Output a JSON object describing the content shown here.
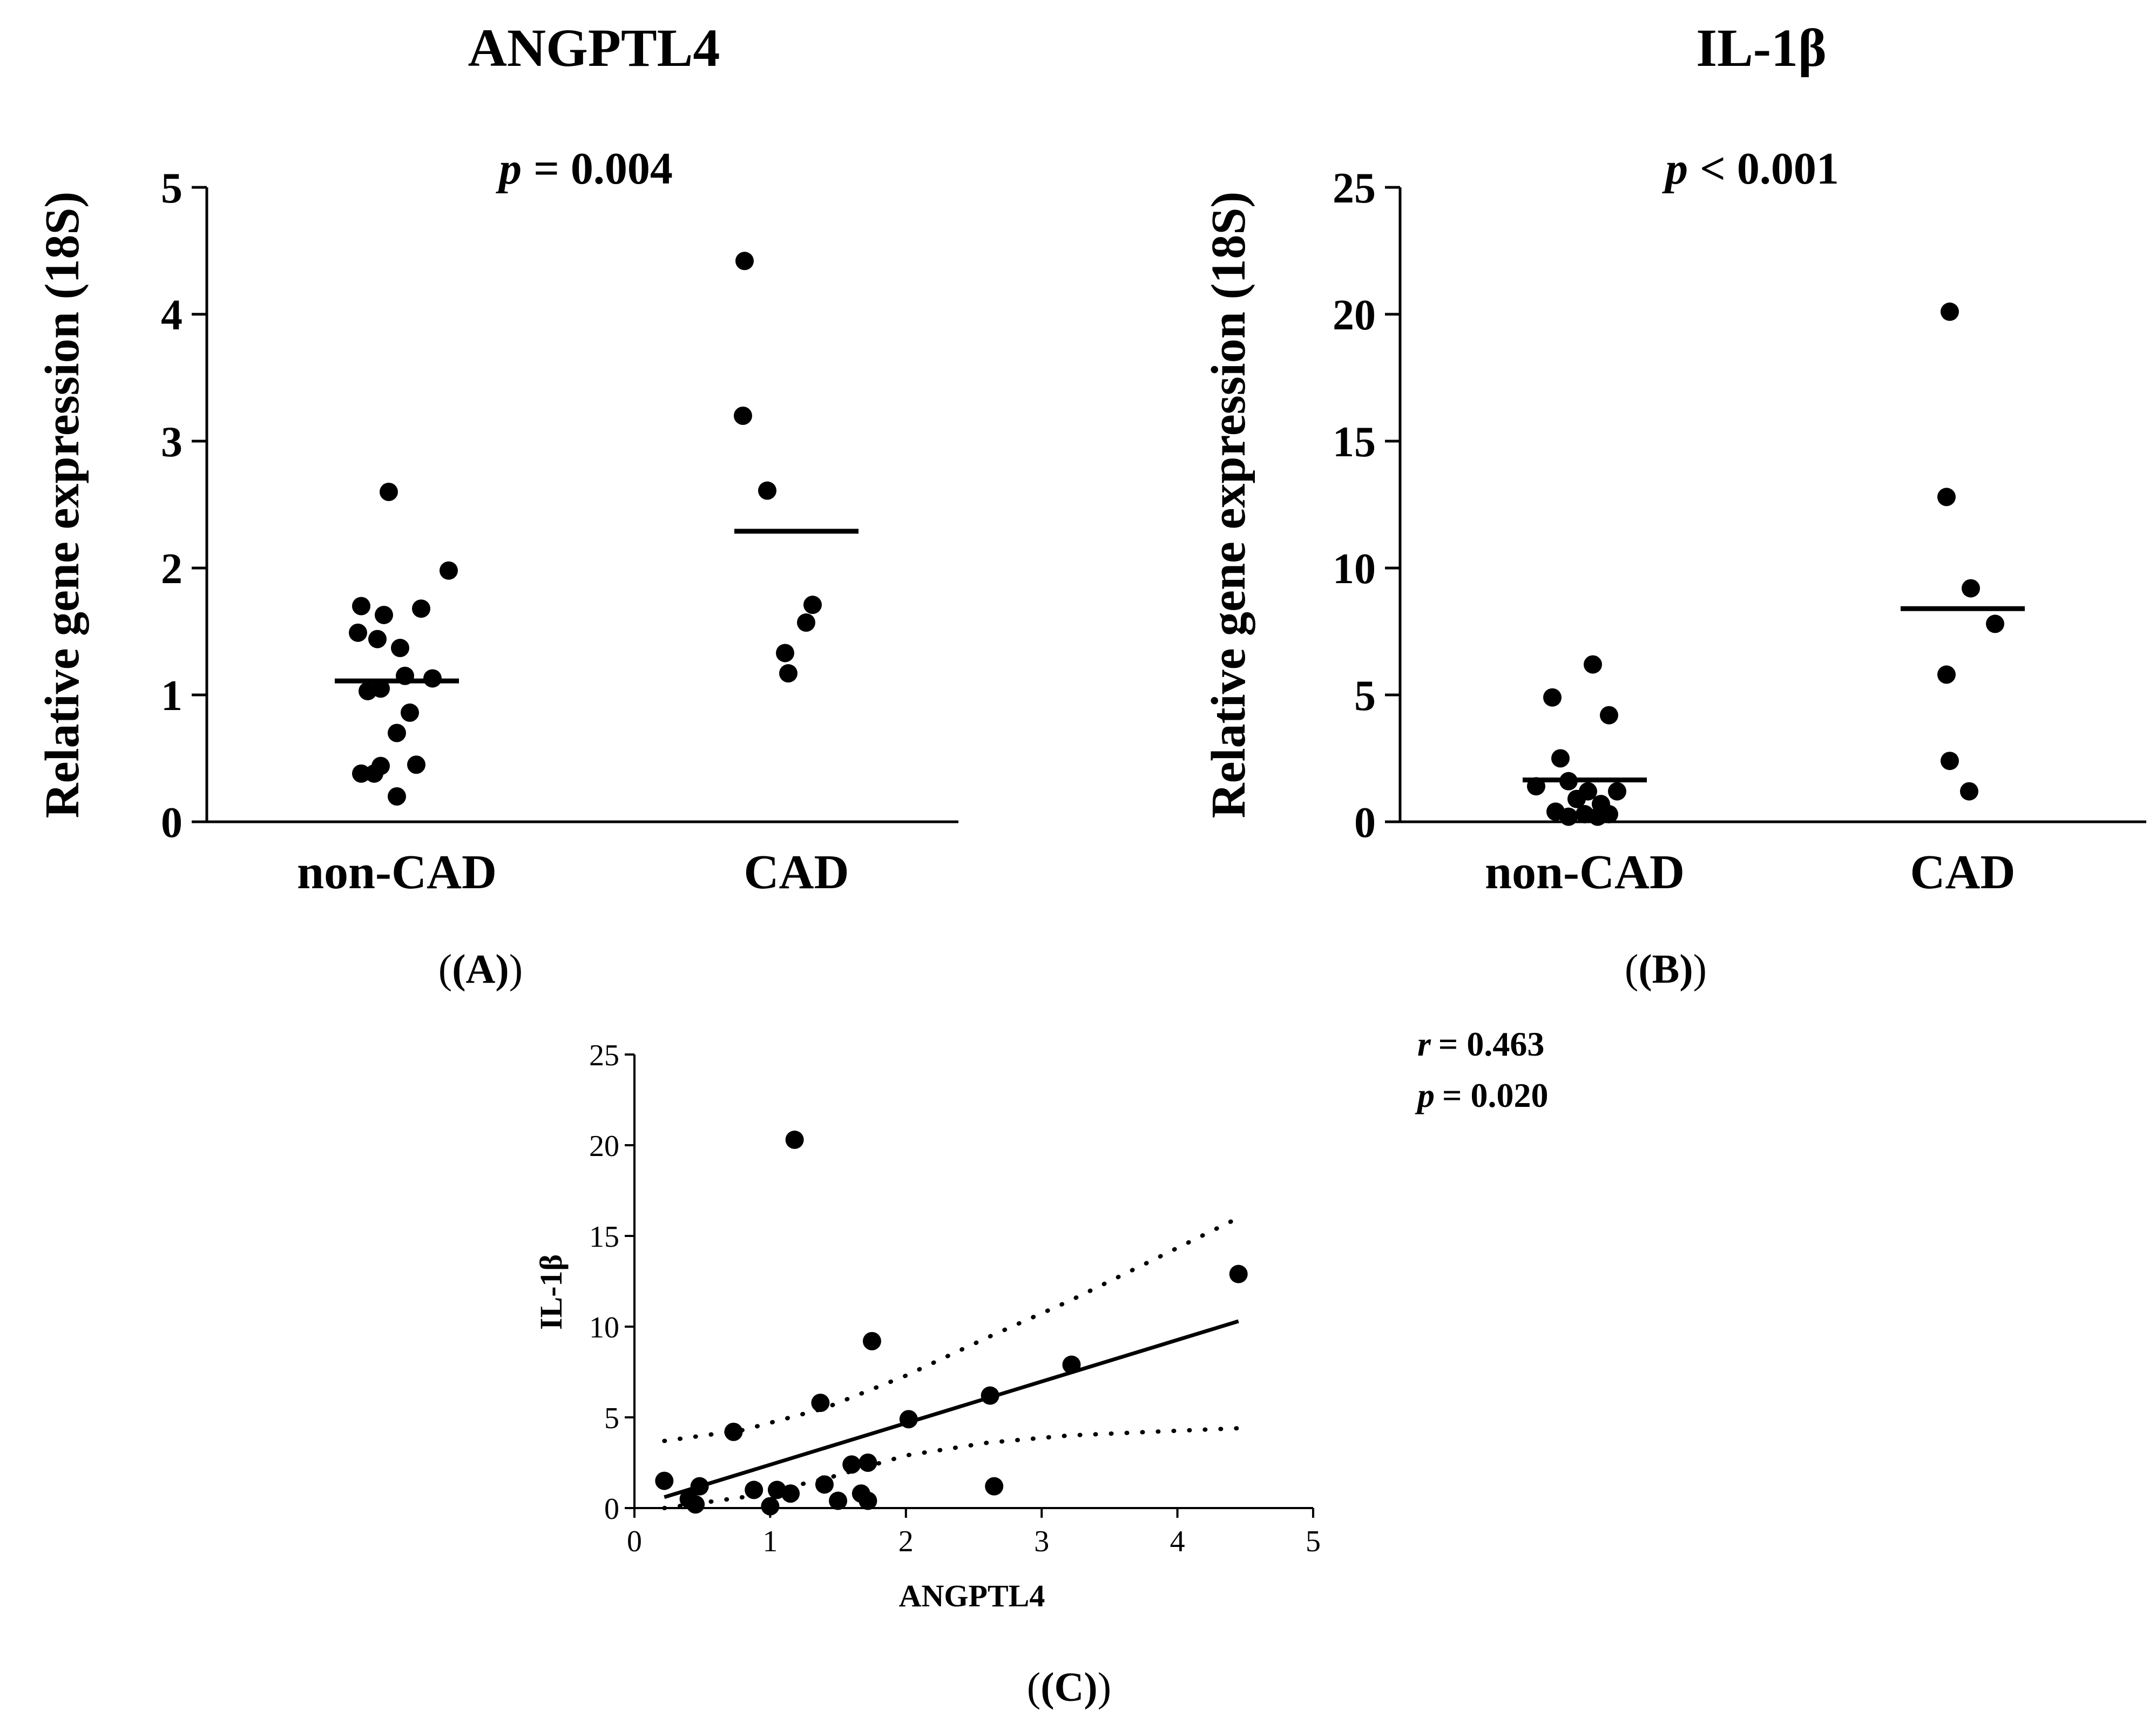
{
  "chart_data": [
    {
      "panel_label": "(A)",
      "type": "scatter",
      "title": "ANGPTL4",
      "annotation": {
        "p_label": "p",
        "p_text": "= 0.004"
      },
      "xlabel": "",
      "ylabel": "Relative gene expression (18S)",
      "ylim": [
        0,
        5
      ],
      "yticks": [
        0,
        1,
        2,
        3,
        4,
        5
      ],
      "categories": [
        "non-CAD",
        "CAD"
      ],
      "groups": [
        {
          "name": "non-CAD",
          "mean": 1.11,
          "points": [
            {
              "j": -0.05,
              "y": 2.6
            },
            {
              "j": 0.32,
              "y": 1.98
            },
            {
              "j": -0.22,
              "y": 1.7
            },
            {
              "j": -0.08,
              "y": 1.63
            },
            {
              "j": 0.15,
              "y": 1.68
            },
            {
              "j": -0.24,
              "y": 1.49
            },
            {
              "j": -0.12,
              "y": 1.44
            },
            {
              "j": 0.02,
              "y": 1.37
            },
            {
              "j": 0.05,
              "y": 1.15
            },
            {
              "j": 0.22,
              "y": 1.13
            },
            {
              "j": -0.18,
              "y": 1.03
            },
            {
              "j": -0.1,
              "y": 1.05
            },
            {
              "j": 0.08,
              "y": 0.86
            },
            {
              "j": 0.0,
              "y": 0.7
            },
            {
              "j": -0.1,
              "y": 0.44
            },
            {
              "j": 0.12,
              "y": 0.45
            },
            {
              "j": -0.22,
              "y": 0.38
            },
            {
              "j": -0.14,
              "y": 0.38
            },
            {
              "j": 0.0,
              "y": 0.2
            }
          ]
        },
        {
          "name": "CAD",
          "mean": 2.29,
          "points": [
            {
              "j": -0.32,
              "y": 4.42
            },
            {
              "j": -0.33,
              "y": 3.2
            },
            {
              "j": -0.18,
              "y": 2.61
            },
            {
              "j": 0.1,
              "y": 1.71
            },
            {
              "j": 0.06,
              "y": 1.57
            },
            {
              "j": -0.07,
              "y": 1.33
            },
            {
              "j": -0.05,
              "y": 1.17
            }
          ]
        }
      ]
    },
    {
      "panel_label": "(B)",
      "type": "scatter",
      "title": "IL-1β",
      "annotation": {
        "p_label": "p",
        "p_text": "< 0.001"
      },
      "xlabel": "",
      "ylabel": "Relative gene expression (18S)",
      "ylim": [
        0,
        25
      ],
      "yticks": [
        0,
        5,
        10,
        15,
        20,
        25
      ],
      "categories": [
        "non-CAD",
        "CAD"
      ],
      "groups": [
        {
          "name": "non-CAD",
          "mean": 1.65,
          "points": [
            {
              "j": 0.05,
              "y": 6.2
            },
            {
              "j": -0.2,
              "y": 4.9
            },
            {
              "j": 0.15,
              "y": 4.2
            },
            {
              "j": -0.15,
              "y": 2.5
            },
            {
              "j": -0.3,
              "y": 1.4
            },
            {
              "j": -0.1,
              "y": 1.6
            },
            {
              "j": 0.02,
              "y": 1.2
            },
            {
              "j": 0.2,
              "y": 1.2
            },
            {
              "j": -0.05,
              "y": 0.9
            },
            {
              "j": 0.1,
              "y": 0.7
            },
            {
              "j": -0.18,
              "y": 0.4
            },
            {
              "j": 0.0,
              "y": 0.3
            },
            {
              "j": 0.15,
              "y": 0.3
            },
            {
              "j": -0.1,
              "y": 0.2
            },
            {
              "j": 0.08,
              "y": 0.2
            }
          ]
        },
        {
          "name": "CAD",
          "mean": 8.4,
          "points": [
            {
              "j": -0.08,
              "y": 20.1
            },
            {
              "j": -0.1,
              "y": 12.8
            },
            {
              "j": 0.05,
              "y": 9.2
            },
            {
              "j": 0.2,
              "y": 7.8
            },
            {
              "j": -0.1,
              "y": 5.8
            },
            {
              "j": -0.08,
              "y": 2.4
            },
            {
              "j": 0.04,
              "y": 1.2
            }
          ]
        }
      ]
    },
    {
      "panel_label": "(C)",
      "type": "scatter",
      "title": "",
      "annotation": {
        "r_label": "r",
        "r_text": "= 0.463",
        "p_label": "p",
        "p_text": "= 0.020"
      },
      "xlabel": "ANGPTL4",
      "ylabel": "IL-1β",
      "xlim": [
        0,
        5
      ],
      "ylim": [
        0,
        25
      ],
      "xticks": [
        0,
        1,
        2,
        3,
        4,
        5
      ],
      "yticks": [
        0,
        5,
        10,
        15,
        20,
        25
      ],
      "points": [
        {
          "x": 1.18,
          "y": 20.3
        },
        {
          "x": 4.45,
          "y": 12.9
        },
        {
          "x": 1.75,
          "y": 9.2
        },
        {
          "x": 3.22,
          "y": 7.9
        },
        {
          "x": 2.62,
          "y": 6.2
        },
        {
          "x": 1.37,
          "y": 5.8
        },
        {
          "x": 2.02,
          "y": 4.9
        },
        {
          "x": 0.73,
          "y": 4.2
        },
        {
          "x": 1.72,
          "y": 2.5
        },
        {
          "x": 1.6,
          "y": 2.4
        },
        {
          "x": 0.22,
          "y": 1.5
        },
        {
          "x": 0.48,
          "y": 1.2
        },
        {
          "x": 1.4,
          "y": 1.3
        },
        {
          "x": 2.65,
          "y": 1.2
        },
        {
          "x": 0.88,
          "y": 1.0
        },
        {
          "x": 1.05,
          "y": 1.0
        },
        {
          "x": 1.15,
          "y": 0.8
        },
        {
          "x": 1.67,
          "y": 0.8
        },
        {
          "x": 0.4,
          "y": 0.5
        },
        {
          "x": 1.5,
          "y": 0.4
        },
        {
          "x": 1.72,
          "y": 0.4
        },
        {
          "x": 0.45,
          "y": 0.2
        },
        {
          "x": 1.0,
          "y": 0.1
        }
      ],
      "fit_line": {
        "x": [
          0.22,
          4.45
        ],
        "y": [
          0.6,
          10.3
        ]
      },
      "ci_upper": {
        "x": [
          0.22,
          0.8,
          1.4,
          2.0,
          2.6,
          3.2,
          3.8,
          4.45
        ],
        "y": [
          3.7,
          4.3,
          5.5,
          7.3,
          9.4,
          11.4,
          13.6,
          16.0
        ]
      },
      "ci_lower": {
        "x": [
          0.22,
          0.8,
          1.4,
          2.0,
          2.6,
          3.2,
          3.8,
          4.45
        ],
        "y": [
          0.0,
          0.6,
          1.6,
          2.9,
          3.6,
          4.0,
          4.2,
          4.4
        ]
      }
    }
  ]
}
